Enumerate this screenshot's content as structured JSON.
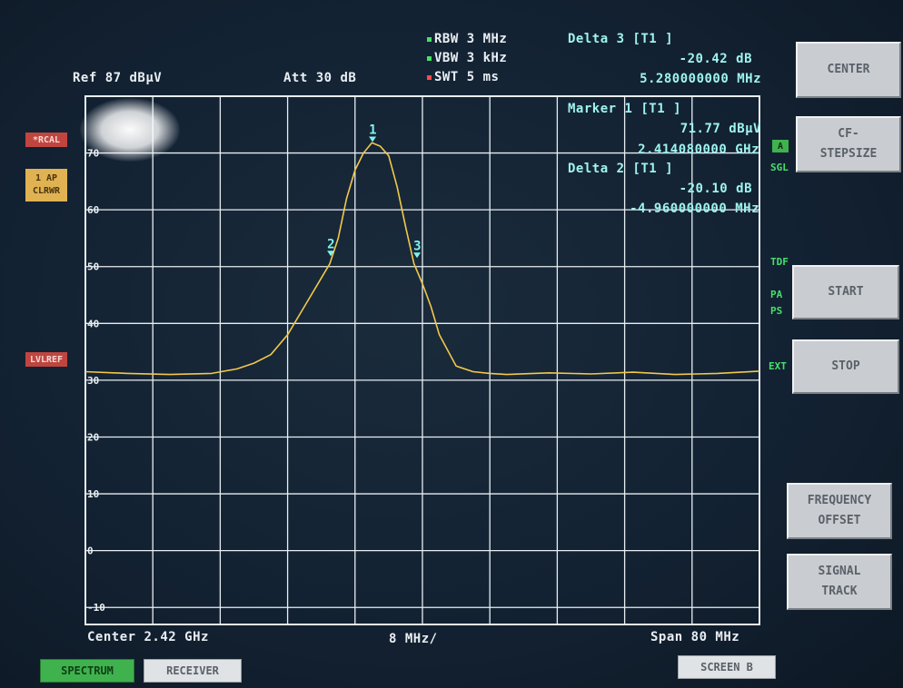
{
  "header": {
    "ref": "Ref  87 dBµV",
    "att": "Att  30 dB",
    "rbw": "RBW 3 MHz",
    "vbw": "VBW 3 kHz",
    "swt": "SWT 5 ms"
  },
  "delta3": {
    "title": "Delta 3 [T1 ]",
    "level": "-20.42 dB",
    "freq": "5.280000000 MHz"
  },
  "marker1": {
    "title": "Marker 1 [T1 ]",
    "level": "71.77 dBµV",
    "freq": "2.414080000 GHz"
  },
  "delta2": {
    "title": "Delta 2 [T1 ]",
    "level": "-20.10 dB",
    "freq": "-4.960000000 MHz"
  },
  "left_flags": {
    "rbw_flag": "*RCAL",
    "trace_flag_1": "1 AP",
    "trace_flag_2": "CLRWR",
    "lvl_flag": "LVLREF"
  },
  "right_flags": {
    "a": "A",
    "sgl": "SGL",
    "tdf": "TDF",
    "pa": "PA",
    "ps": "PS",
    "ext": "EXT"
  },
  "y_ticks": [
    "70",
    "60",
    "50",
    "40",
    "30",
    "20",
    "10",
    "0",
    "-10"
  ],
  "markers_on_trace": [
    "1",
    "2",
    "3"
  ],
  "footer": {
    "center": "Center  2.42 GHz",
    "div": "8 MHz/",
    "span": "Span  80 MHz"
  },
  "softkeys": {
    "center": "CENTER",
    "cf_step_1": "CF-",
    "cf_step_2": "STEPSIZE",
    "start": "START",
    "stop": "STOP",
    "freq_offset_1": "FREQUENCY",
    "freq_offset_2": "OFFSET",
    "signal_track_1": "SIGNAL",
    "signal_track_2": "TRACK"
  },
  "bottom_tabs": {
    "spectrum": "SPECTRUM",
    "receiver": "RECEIVER",
    "screen_b": "SCREEN B"
  },
  "colors": {
    "trace": "#f2c84a",
    "marker": "#7ff2ee",
    "grid": "#e8eef2",
    "active_tab": "#3fb24e"
  },
  "chart_data": {
    "type": "line",
    "xlabel": "",
    "ylabel": "",
    "xlim": [
      2.38,
      2.46
    ],
    "ylim": [
      -13,
      80
    ],
    "x_unit": "GHz",
    "y_unit": "dBµV",
    "grid": true,
    "series": [
      {
        "x": [
          2.38,
          2.385,
          2.39,
          2.395,
          2.398,
          2.4,
          2.402,
          2.404,
          2.406,
          2.408,
          2.409,
          2.41,
          2.411,
          2.412,
          2.413,
          2.414,
          2.415,
          2.416,
          2.417,
          2.418,
          2.419,
          2.42,
          2.421,
          2.422,
          2.424,
          2.426,
          2.428,
          2.43,
          2.435,
          2.44,
          2.445,
          2.45,
          2.455,
          2.46
        ],
        "y": [
          31.5,
          31.2,
          31.0,
          31.2,
          32.0,
          33.0,
          34.5,
          38.0,
          43.0,
          48.0,
          50.5,
          55.0,
          62.0,
          67.0,
          70.0,
          71.8,
          71.2,
          69.5,
          64.0,
          57.0,
          50.5,
          47.0,
          43.0,
          38.0,
          32.5,
          31.5,
          31.2,
          31.0,
          31.3,
          31.1,
          31.4,
          31.0,
          31.2,
          31.6
        ]
      }
    ],
    "markers": [
      {
        "label": "1",
        "x": 2.41408,
        "y": 71.77
      },
      {
        "label": "2",
        "x": 2.40912,
        "y": 51.67
      },
      {
        "label": "3",
        "x": 2.41936,
        "y": 51.35
      }
    ]
  }
}
